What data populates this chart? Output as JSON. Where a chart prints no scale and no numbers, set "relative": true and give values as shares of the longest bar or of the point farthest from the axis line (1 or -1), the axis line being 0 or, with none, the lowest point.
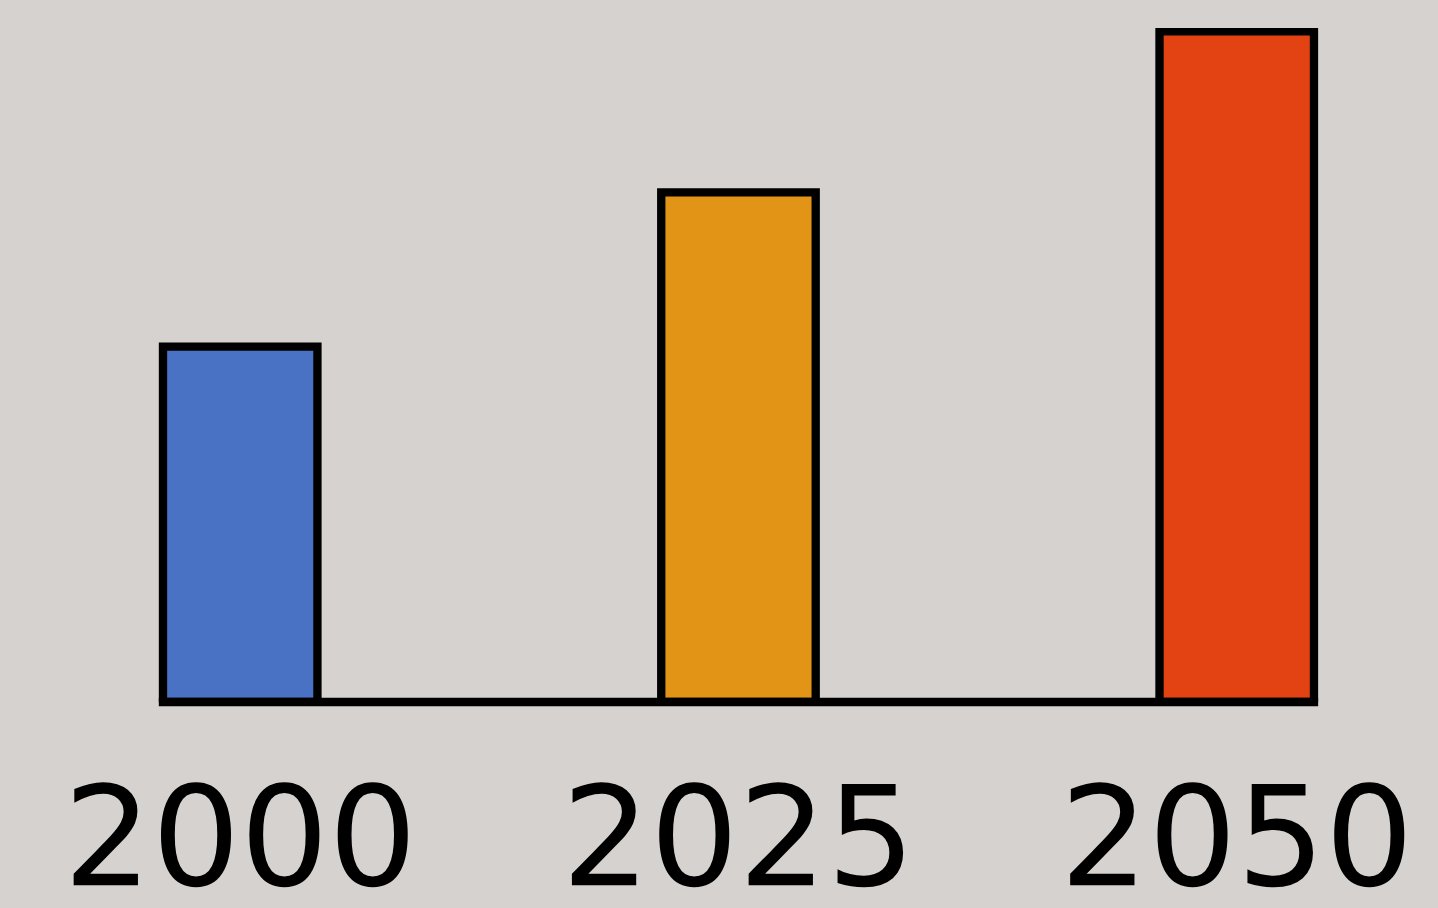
{
  "chart_data": {
    "type": "bar",
    "relative": true,
    "categories": [
      "2000",
      "2025",
      "2050"
    ],
    "values": [
      0.53,
      0.76,
      1.0
    ],
    "colors": [
      "#4a72c4",
      "#e29416",
      "#e34212"
    ],
    "grid": false,
    "legend": false
  }
}
